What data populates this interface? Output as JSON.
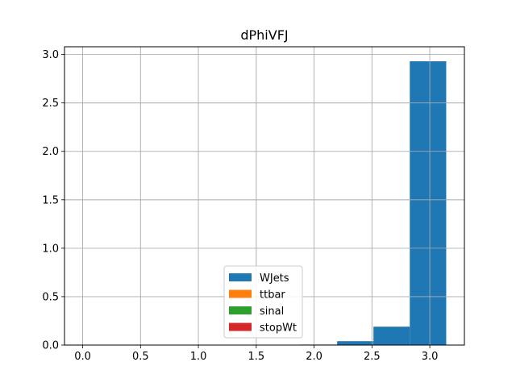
{
  "chart_data": {
    "type": "bar",
    "title": "dPhiVFJ",
    "xlabel": "",
    "ylabel": "",
    "xlim": [
      -0.157,
      3.299
    ],
    "ylim": [
      0,
      3.08
    ],
    "xticks": [
      0.0,
      0.5,
      1.0,
      1.5,
      2.0,
      2.5,
      3.0
    ],
    "xtick_labels": [
      "0.0",
      "0.5",
      "1.0",
      "1.5",
      "2.0",
      "2.5",
      "3.0"
    ],
    "yticks": [
      0.0,
      0.5,
      1.0,
      1.5,
      2.0,
      2.5,
      3.0
    ],
    "ytick_labels": [
      "0.0",
      "0.5",
      "1.0",
      "1.5",
      "2.0",
      "2.5",
      "3.0"
    ],
    "grid": true,
    "legend_position": "lower-center",
    "series": [
      {
        "name": "WJets",
        "color": "#1f77b4",
        "bins": [
          {
            "x0": 1.885,
            "x1": 2.199,
            "value": 0.005
          },
          {
            "x0": 2.199,
            "x1": 2.513,
            "value": 0.04
          },
          {
            "x0": 2.513,
            "x1": 2.827,
            "value": 0.19
          },
          {
            "x0": 2.827,
            "x1": 3.142,
            "value": 2.93
          }
        ]
      },
      {
        "name": "ttbar",
        "color": "#ff7f0e",
        "bins": []
      },
      {
        "name": "sinal",
        "color": "#2ca02c",
        "bins": []
      },
      {
        "name": "stopWt",
        "color": "#d62728",
        "bins": []
      }
    ]
  }
}
